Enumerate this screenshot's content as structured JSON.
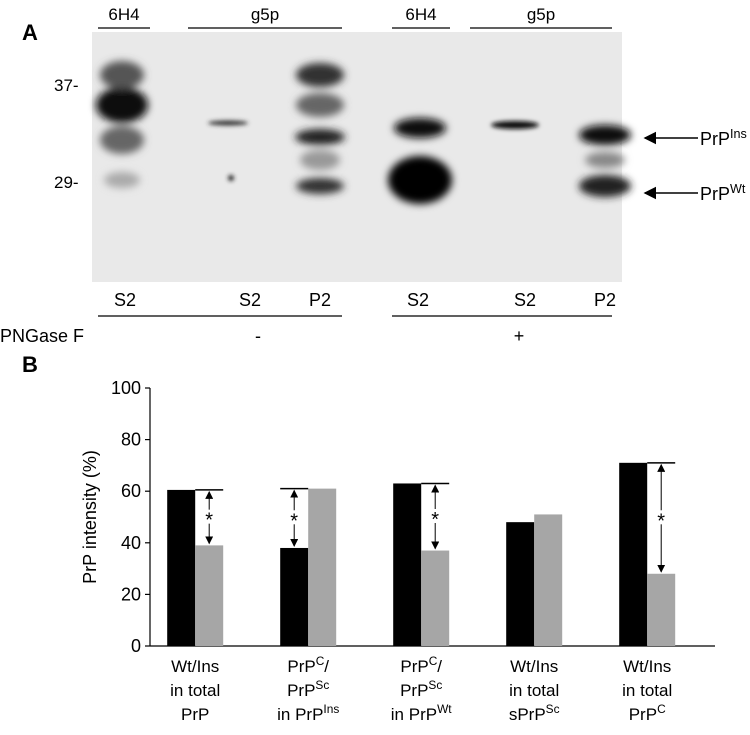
{
  "blot": {
    "panel_label": "A",
    "lane_groups": [
      "6H4",
      "g5p",
      "6H4",
      "g5p"
    ],
    "markers": [
      "37-",
      "29-"
    ],
    "bands": [
      [
        {
          "text": "PrP"
        },
        {
          "sup": "Ins"
        }
      ],
      [
        {
          "text": "PrP"
        },
        {
          "sup": "Wt"
        }
      ]
    ],
    "lanes": [
      "S2",
      "S2",
      "P2",
      "S2",
      "S2",
      "P2"
    ],
    "treatment": "PNGase F",
    "treatment_states": [
      "-",
      "+"
    ]
  },
  "chart_data": {
    "type": "bar",
    "panel_label": "B",
    "y_label": "PrP intensity (%)",
    "categories": [
      [
        [
          {
            "text": "Wt/Ins"
          }
        ],
        [
          {
            "text": "in total"
          }
        ],
        [
          {
            "text": "PrP"
          }
        ]
      ],
      [
        [
          {
            "text": "PrP"
          },
          {
            "sup": "C"
          },
          {
            "text": "/"
          }
        ],
        [
          {
            "text": "PrP"
          },
          {
            "sup": "Sc"
          }
        ],
        [
          {
            "text": "in PrP"
          },
          {
            "sup": "Ins"
          }
        ]
      ],
      [
        [
          {
            "text": "PrP"
          },
          {
            "sup": "C"
          },
          {
            "text": "/"
          }
        ],
        [
          {
            "text": "PrP"
          },
          {
            "sup": "Sc"
          }
        ],
        [
          {
            "text": "in PrP"
          },
          {
            "sup": "Wt"
          }
        ]
      ],
      [
        [
          {
            "text": "Wt/Ins"
          }
        ],
        [
          {
            "text": "in total"
          }
        ],
        [
          {
            "text": "sPrP"
          },
          {
            "sup": "Sc"
          }
        ]
      ],
      [
        [
          {
            "text": "Wt/Ins"
          }
        ],
        [
          {
            "text": "in total"
          }
        ],
        [
          {
            "text": "PrP"
          },
          {
            "sup": "C"
          }
        ]
      ]
    ],
    "series": [
      {
        "color": "#000000",
        "values": [
          60.5,
          38,
          63,
          48,
          71
        ]
      },
      {
        "color": "#a6a6a6",
        "values": [
          39,
          61,
          37,
          51,
          28
        ]
      }
    ],
    "significance": [
      "*",
      "*",
      "*",
      null,
      "*"
    ],
    "ylim": [
      0,
      100
    ],
    "yticks": [
      0,
      20,
      40,
      60,
      80,
      100
    ],
    "grid": false
  }
}
